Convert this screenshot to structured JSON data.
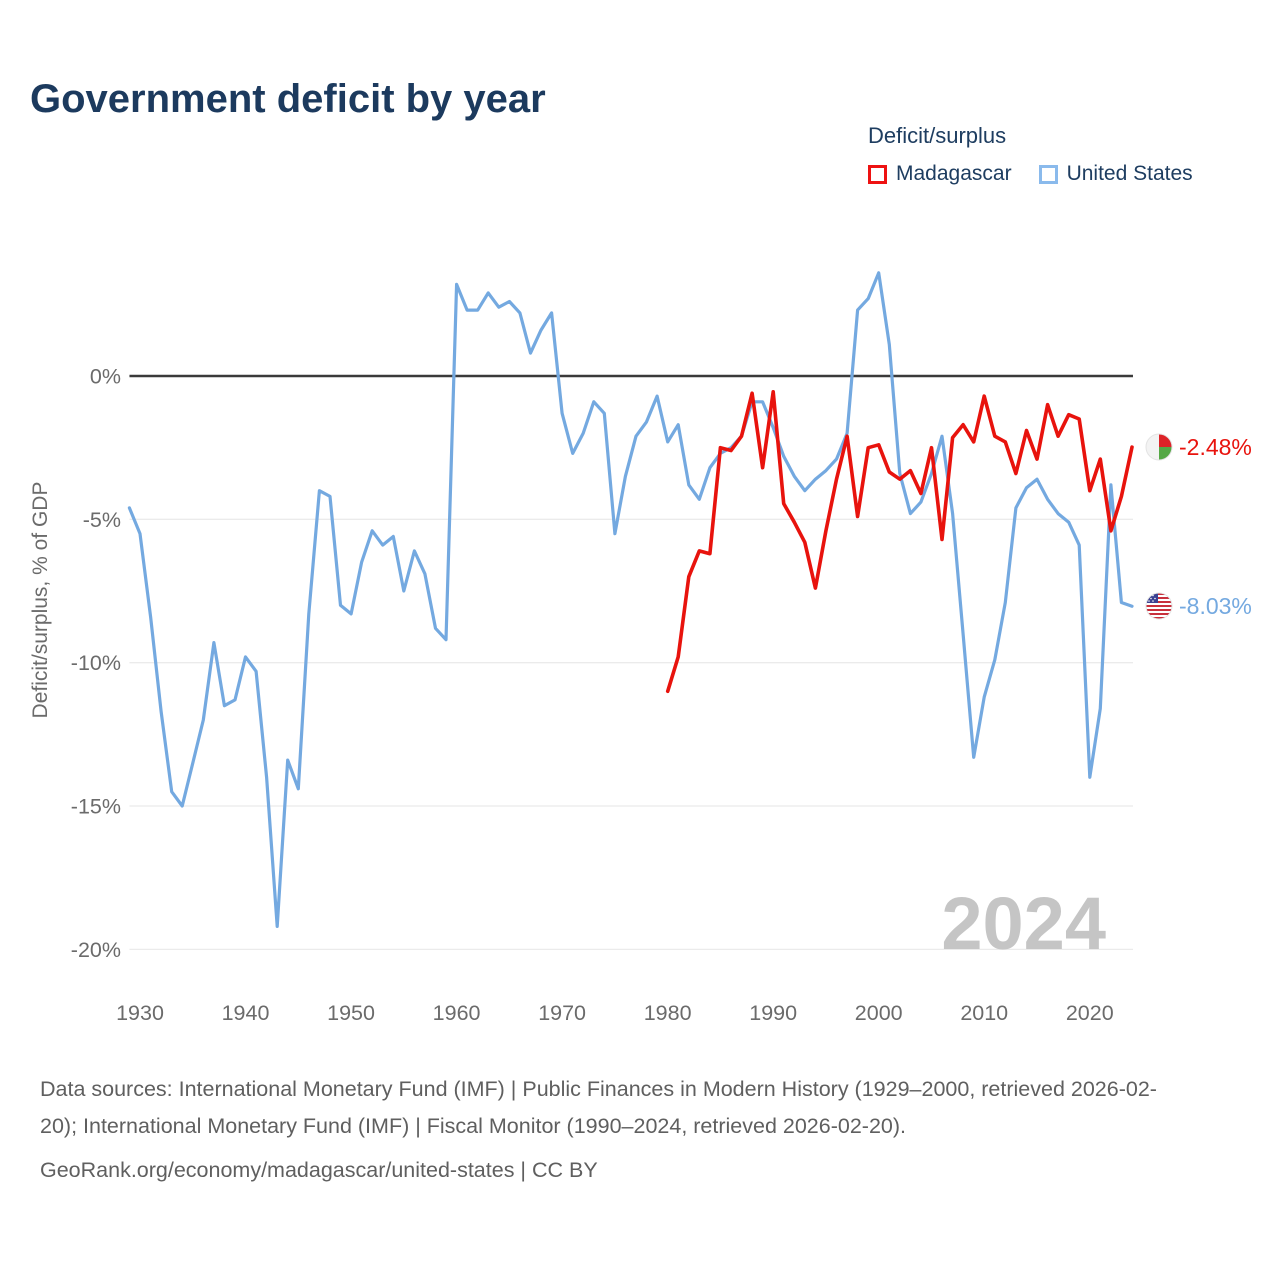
{
  "title": "Government deficit by year",
  "watermark": "2024",
  "legend": {
    "title": "Deficit/surplus",
    "items": [
      {
        "label": "Madagascar",
        "color": "#ee1212"
      },
      {
        "label": "United States",
        "color": "#8abaec"
      }
    ]
  },
  "y_axis": {
    "title": "Deficit/surplus, % of GDP",
    "tick_labels": [
      "0%",
      "-5%",
      "-10%",
      "-15%",
      "-20%"
    ]
  },
  "x_axis": {
    "tick_labels": [
      "1930",
      "1940",
      "1950",
      "1960",
      "1970",
      "1980",
      "1990",
      "2000",
      "2010",
      "2020"
    ]
  },
  "end_labels": [
    {
      "series": "Madagascar",
      "value": "-2.48%",
      "color": "#e8130d",
      "flag_icon": "madagascar-flag-icon"
    },
    {
      "series": "United States",
      "value": "-8.03%",
      "color": "#74a9e0",
      "flag_icon": "us-flag-icon"
    }
  ],
  "footer": {
    "sources": "Data sources: International Monetary Fund (IMF) | Public Finances in Modern History (1929–2000, retrieved 2026-02-20); International Monetary Fund (IMF) | Fiscal Monitor (1990–2024, retrieved 2026-02-20).",
    "attribution": "GeoRank.org/economy/madagascar/united-states | CC BY"
  },
  "colors": {
    "title_navy": "#1c3a5e",
    "axis_text": "#6b6b6b",
    "gridline": "#ebebeb",
    "zero_line": "#3a3a3a",
    "madagascar_line": "#e8130d",
    "united_states_line": "#74a9e0",
    "watermark_gray": "#c5c5c5",
    "footer_gray": "#5f5f5f"
  },
  "chart_data": {
    "type": "line",
    "title": "Government deficit by year",
    "xlabel": "",
    "ylabel": "Deficit/surplus, % of GDP",
    "xlim": [
      1929,
      2024
    ],
    "ylim": [
      -20.8,
      3.9
    ],
    "grid": true,
    "legend_position": "top-right",
    "zero_line": true,
    "x_ticks": [
      1930,
      1940,
      1950,
      1960,
      1970,
      1980,
      1990,
      2000,
      2010,
      2020
    ],
    "y_ticks": [
      {
        "value": 0,
        "label": "0%"
      },
      {
        "value": -5,
        "label": "-5%"
      },
      {
        "value": -10,
        "label": "-10%"
      },
      {
        "value": -15,
        "label": "-15%"
      },
      {
        "value": -20,
        "label": "-20%"
      }
    ],
    "unit": "% of GDP",
    "last_year": 2024,
    "series": [
      {
        "name": "Madagascar",
        "color": "#e8130d",
        "end_label": "-2.48%",
        "years": [
          1980,
          1981,
          1982,
          1983,
          1984,
          1985,
          1986,
          1987,
          1988,
          1989,
          1990,
          1991,
          1992,
          1993,
          1994,
          1995,
          1996,
          1997,
          1998,
          1999,
          2000,
          2001,
          2002,
          2003,
          2004,
          2005,
          2006,
          2007,
          2008,
          2009,
          2010,
          2011,
          2012,
          2013,
          2014,
          2015,
          2016,
          2017,
          2018,
          2019,
          2020,
          2021,
          2022,
          2023,
          2024
        ],
        "values": [
          -11.0,
          -9.8,
          -7.0,
          -6.1,
          -6.2,
          -2.5,
          -2.6,
          -2.1,
          -0.6,
          -3.2,
          -0.55,
          -4.45,
          -5.1,
          -5.8,
          -7.4,
          -5.4,
          -3.6,
          -2.1,
          -4.9,
          -2.5,
          -2.4,
          -3.35,
          -3.6,
          -3.3,
          -4.1,
          -2.5,
          -5.7,
          -2.15,
          -1.7,
          -2.3,
          -0.7,
          -2.1,
          -2.3,
          -3.4,
          -1.9,
          -2.9,
          -1.0,
          -2.1,
          -1.35,
          -1.5,
          -4.0,
          -2.9,
          -5.4,
          -4.2,
          -2.48
        ]
      },
      {
        "name": "United States",
        "color": "#74a9e0",
        "end_label": "-8.03%",
        "years": [
          1929,
          1930,
          1931,
          1932,
          1933,
          1934,
          1935,
          1936,
          1937,
          1938,
          1939,
          1940,
          1941,
          1942,
          1943,
          1944,
          1945,
          1946,
          1947,
          1948,
          1949,
          1950,
          1951,
          1952,
          1953,
          1954,
          1955,
          1956,
          1957,
          1958,
          1959,
          1960,
          1961,
          1962,
          1963,
          1964,
          1965,
          1966,
          1967,
          1968,
          1969,
          1970,
          1971,
          1972,
          1973,
          1974,
          1975,
          1976,
          1977,
          1978,
          1979,
          1980,
          1981,
          1982,
          1983,
          1984,
          1985,
          1986,
          1987,
          1988,
          1989,
          1990,
          1991,
          1992,
          1993,
          1994,
          1995,
          1996,
          1997,
          1998,
          1999,
          2000,
          2001,
          2002,
          2003,
          2004,
          2005,
          2006,
          2007,
          2008,
          2009,
          2010,
          2011,
          2012,
          2013,
          2014,
          2015,
          2016,
          2017,
          2018,
          2019,
          2020,
          2021,
          2022,
          2023,
          2024
        ],
        "values": [
          -4.6,
          -5.5,
          -8.4,
          -11.7,
          -14.5,
          -15.0,
          -13.5,
          -12.0,
          -9.3,
          -11.5,
          -11.3,
          -9.8,
          -10.3,
          -14.0,
          -19.2,
          -13.4,
          -14.4,
          -8.3,
          -4.0,
          -4.2,
          -8.0,
          -8.3,
          -6.5,
          -5.4,
          -5.9,
          -5.6,
          -7.5,
          -6.1,
          -6.9,
          -8.8,
          -9.2,
          3.2,
          2.3,
          2.3,
          2.9,
          2.4,
          2.6,
          2.2,
          0.8,
          1.6,
          2.2,
          -1.3,
          -2.7,
          -2.0,
          -0.9,
          -1.3,
          -5.5,
          -3.5,
          -2.1,
          -1.6,
          -0.7,
          -2.3,
          -1.7,
          -3.8,
          -4.3,
          -3.2,
          -2.7,
          -2.5,
          -2.1,
          -0.9,
          -0.9,
          -1.8,
          -2.8,
          -3.5,
          -4.0,
          -3.6,
          -3.3,
          -2.9,
          -2.0,
          2.3,
          2.7,
          3.6,
          1.1,
          -3.4,
          -4.8,
          -4.4,
          -3.4,
          -2.1,
          -4.8,
          -9.0,
          -13.3,
          -11.2,
          -9.9,
          -7.9,
          -4.6,
          -3.9,
          -3.6,
          -4.3,
          -4.8,
          -5.1,
          -5.9,
          -14.0,
          -11.6,
          -3.8,
          -7.9,
          -8.03
        ]
      }
    ]
  }
}
